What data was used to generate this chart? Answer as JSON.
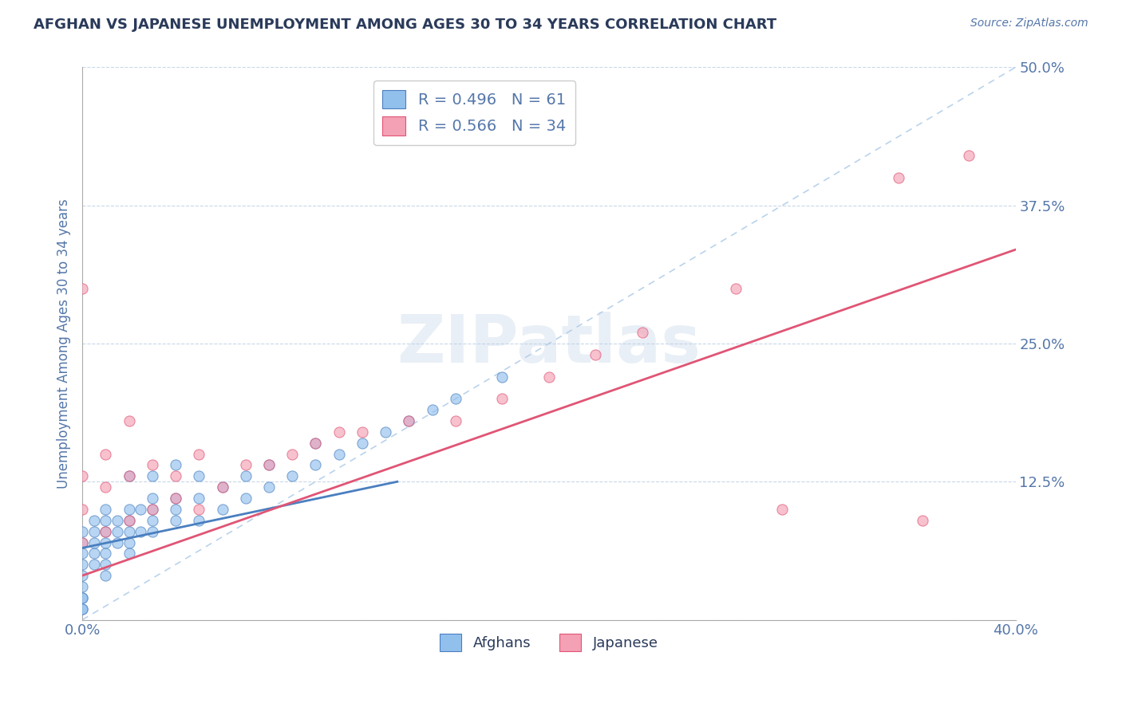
{
  "title": "AFGHAN VS JAPANESE UNEMPLOYMENT AMONG AGES 30 TO 34 YEARS CORRELATION CHART",
  "source_text": "Source: ZipAtlas.com",
  "ylabel": "Unemployment Among Ages 30 to 34 years",
  "xlim": [
    0.0,
    0.4
  ],
  "ylim": [
    0.0,
    0.5
  ],
  "xticklabels": [
    "0.0%",
    "40.0%"
  ],
  "ytick_values": [
    0.0,
    0.125,
    0.25,
    0.375,
    0.5
  ],
  "ytick_labels": [
    "",
    "12.5%",
    "25.0%",
    "37.5%",
    "50.0%"
  ],
  "legend_r_afghan": "R = 0.496",
  "legend_n_afghan": "N = 61",
  "legend_r_japanese": "R = 0.566",
  "legend_n_japanese": "N = 34",
  "afghan_color": "#92c0ed",
  "japanese_color": "#f4a0b5",
  "afghan_line_color": "#4a7fc0",
  "japanese_line_color": "#e05575",
  "diagonal_line_color": "#a8c8e8",
  "watermark": "ZIPatlas",
  "background_color": "#ffffff",
  "grid_color": "#c8d8ea",
  "title_color": "#2a3a5a",
  "axis_label_color": "#5577aa",
  "tick_color": "#5577aa",
  "afghan_scatter_x": [
    0.0,
    0.0,
    0.0,
    0.0,
    0.0,
    0.0,
    0.0,
    0.0,
    0.005,
    0.005,
    0.005,
    0.005,
    0.005,
    0.01,
    0.01,
    0.01,
    0.01,
    0.01,
    0.01,
    0.01,
    0.015,
    0.015,
    0.015,
    0.02,
    0.02,
    0.02,
    0.02,
    0.02,
    0.025,
    0.025,
    0.03,
    0.03,
    0.03,
    0.03,
    0.04,
    0.04,
    0.04,
    0.05,
    0.05,
    0.05,
    0.06,
    0.06,
    0.07,
    0.07,
    0.08,
    0.08,
    0.09,
    0.1,
    0.1,
    0.11,
    0.12,
    0.13,
    0.14,
    0.15,
    0.16,
    0.18,
    0.02,
    0.03,
    0.04,
    0.0,
    0.0
  ],
  "afghan_scatter_y": [
    0.06,
    0.07,
    0.08,
    0.05,
    0.04,
    0.03,
    0.02,
    0.01,
    0.06,
    0.07,
    0.08,
    0.05,
    0.09,
    0.06,
    0.07,
    0.08,
    0.09,
    0.05,
    0.1,
    0.04,
    0.07,
    0.08,
    0.09,
    0.07,
    0.08,
    0.09,
    0.1,
    0.06,
    0.08,
    0.1,
    0.08,
    0.09,
    0.1,
    0.11,
    0.09,
    0.1,
    0.11,
    0.09,
    0.11,
    0.13,
    0.1,
    0.12,
    0.11,
    0.13,
    0.12,
    0.14,
    0.13,
    0.14,
    0.16,
    0.15,
    0.16,
    0.17,
    0.18,
    0.19,
    0.2,
    0.22,
    0.13,
    0.13,
    0.14,
    0.01,
    0.02
  ],
  "japanese_scatter_x": [
    0.0,
    0.0,
    0.0,
    0.0,
    0.01,
    0.01,
    0.01,
    0.02,
    0.02,
    0.02,
    0.03,
    0.03,
    0.04,
    0.04,
    0.05,
    0.05,
    0.06,
    0.07,
    0.08,
    0.09,
    0.1,
    0.11,
    0.12,
    0.14,
    0.16,
    0.18,
    0.2,
    0.22,
    0.24,
    0.28,
    0.3,
    0.35,
    0.36,
    0.38
  ],
  "japanese_scatter_y": [
    0.07,
    0.1,
    0.13,
    0.3,
    0.08,
    0.12,
    0.15,
    0.09,
    0.13,
    0.18,
    0.1,
    0.14,
    0.11,
    0.13,
    0.1,
    0.15,
    0.12,
    0.14,
    0.14,
    0.15,
    0.16,
    0.17,
    0.17,
    0.18,
    0.18,
    0.2,
    0.22,
    0.24,
    0.26,
    0.3,
    0.1,
    0.4,
    0.09,
    0.42
  ],
  "afghan_trendline_x": [
    0.0,
    0.135
  ],
  "afghan_trendline_y": [
    0.065,
    0.125
  ],
  "japanese_trendline_x": [
    0.0,
    0.4
  ],
  "japanese_trendline_y": [
    0.04,
    0.335
  ],
  "diagonal_line_x": [
    0.0,
    0.4
  ],
  "diagonal_line_y": [
    0.0,
    0.5
  ]
}
